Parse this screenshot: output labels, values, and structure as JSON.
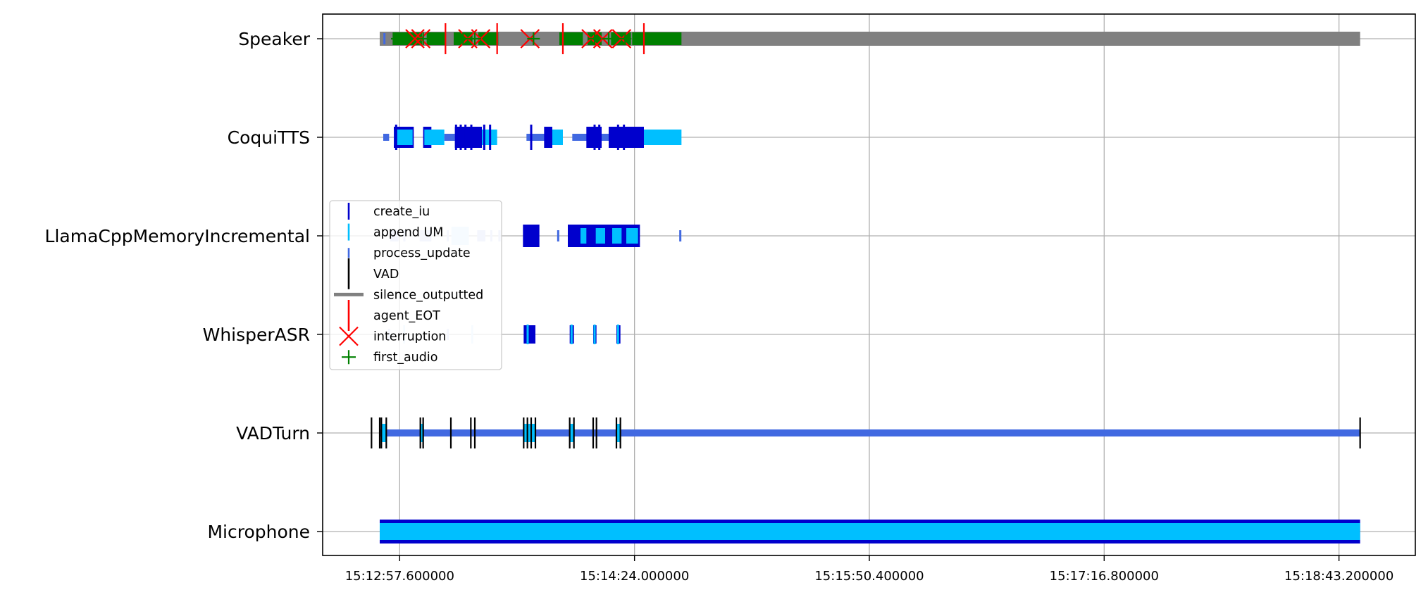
{
  "chart_data": {
    "type": "timeline",
    "title": "",
    "xlabel": "",
    "ylabel": "",
    "grid": true,
    "legend_position": "center-left",
    "x_range_seconds": [
      0,
      442
    ],
    "x_ticks": [
      {
        "t": 33,
        "label": "15:12:57.600000"
      },
      {
        "t": 133,
        "label": "15:14:24.000000"
      },
      {
        "t": 233,
        "label": "15:15:50.400000"
      },
      {
        "t": 333,
        "label": "15:17:16.800000"
      },
      {
        "t": 433,
        "label": "15:18:43.200000"
      }
    ],
    "lanes": [
      "Microphone",
      "VADTurn",
      "WhisperASR",
      "LlamaCppMemoryIncremental",
      "CoquiTTS",
      "Speaker"
    ],
    "colors": {
      "create_iu": "#0000cd",
      "append_UM": "#00bfff",
      "process_update": "#4169e1",
      "VAD": "#000000",
      "silence_outputted": "#808080",
      "agent_EOT": "#ff0000",
      "interruption": "#ff0000",
      "first_audio": "#008000",
      "faded_append": "#cfe8ff",
      "faded_process": "#c8d2f5"
    },
    "legend": [
      {
        "key": "create_iu",
        "label": "create_iu",
        "marker": "vline"
      },
      {
        "key": "append_UM",
        "label": "append UM",
        "marker": "vline"
      },
      {
        "key": "process_update",
        "label": "process_update",
        "marker": "vline-short"
      },
      {
        "key": "VAD",
        "label": "VAD",
        "marker": "vline-tall"
      },
      {
        "key": "silence_outputted",
        "label": "silence_outputted",
        "marker": "hline"
      },
      {
        "key": "agent_EOT",
        "label": "agent_EOT",
        "marker": "vline-tall"
      },
      {
        "key": "interruption",
        "label": "interruption",
        "marker": "x"
      },
      {
        "key": "first_audio",
        "label": "first_audio",
        "marker": "plus"
      }
    ],
    "intervals": [
      {
        "lane": "Microphone",
        "start": 24.5,
        "end": 442,
        "kind": "create_iu"
      },
      {
        "lane": "Microphone",
        "start": 24.5,
        "end": 442,
        "kind": "append_UM"
      },
      {
        "lane": "VADTurn",
        "start": 24.5,
        "end": 442,
        "kind": "process_update"
      },
      {
        "lane": "VADTurn",
        "start": 25.2,
        "end": 27.3,
        "kind": "append_UM"
      },
      {
        "lane": "VADTurn",
        "start": 41.8,
        "end": 43.0,
        "kind": "append_UM"
      },
      {
        "lane": "VADTurn",
        "start": 85.8,
        "end": 90.8,
        "kind": "append_UM"
      },
      {
        "lane": "VADTurn",
        "start": 105.4,
        "end": 107.2,
        "kind": "append_UM"
      },
      {
        "lane": "VADTurn",
        "start": 125.3,
        "end": 127.0,
        "kind": "append_UM"
      },
      {
        "lane": "WhisperASR",
        "start": 34.5,
        "end": 35.3,
        "kind": "faded_append"
      },
      {
        "lane": "WhisperASR",
        "start": 63.5,
        "end": 64.3,
        "kind": "faded_append"
      },
      {
        "lane": "WhisperASR",
        "start": 85.8,
        "end": 90.8,
        "kind": "create_iu"
      },
      {
        "lane": "WhisperASR",
        "start": 105.4,
        "end": 107.2,
        "kind": "create_iu"
      },
      {
        "lane": "WhisperASR",
        "start": 115.4,
        "end": 116.8,
        "kind": "create_iu"
      },
      {
        "lane": "WhisperASR",
        "start": 125.3,
        "end": 127.0,
        "kind": "create_iu"
      },
      {
        "lane": "LlamaCppMemoryIncremental",
        "start": 29.0,
        "end": 32.5,
        "kind": "faded_process"
      },
      {
        "lane": "LlamaCppMemoryIncremental",
        "start": 41.5,
        "end": 46.5,
        "kind": "faded_process"
      },
      {
        "lane": "LlamaCppMemoryIncremental",
        "start": 55.0,
        "end": 62.5,
        "kind": "faded_append"
      },
      {
        "lane": "LlamaCppMemoryIncremental",
        "start": 66.0,
        "end": 69.5,
        "kind": "faded_process"
      },
      {
        "lane": "LlamaCppMemoryIncremental",
        "start": 75.0,
        "end": 76.0,
        "kind": "faded_process"
      },
      {
        "lane": "LlamaCppMemoryIncremental",
        "start": 85.5,
        "end": 92.5,
        "kind": "create_iu"
      },
      {
        "lane": "LlamaCppMemoryIncremental",
        "start": 104.6,
        "end": 135.3,
        "kind": "create_iu"
      },
      {
        "lane": "LlamaCppMemoryIncremental",
        "start": 110.0,
        "end": 112.5,
        "kind": "append_UM"
      },
      {
        "lane": "LlamaCppMemoryIncremental",
        "start": 116.5,
        "end": 120.5,
        "kind": "append_UM"
      },
      {
        "lane": "LlamaCppMemoryIncremental",
        "start": 123.5,
        "end": 127.5,
        "kind": "append_UM"
      },
      {
        "lane": "LlamaCppMemoryIncremental",
        "start": 129.5,
        "end": 134.5,
        "kind": "append_UM"
      },
      {
        "lane": "CoquiTTS",
        "start": 26.0,
        "end": 28.5,
        "kind": "process_update"
      },
      {
        "lane": "CoquiTTS",
        "start": 30.5,
        "end": 39.0,
        "kind": "create_iu"
      },
      {
        "lane": "CoquiTTS",
        "start": 31.0,
        "end": 38.5,
        "kind": "append_UM"
      },
      {
        "lane": "CoquiTTS",
        "start": 43.0,
        "end": 46.5,
        "kind": "create_iu"
      },
      {
        "lane": "CoquiTTS",
        "start": 43.5,
        "end": 52.0,
        "kind": "append_UM"
      },
      {
        "lane": "CoquiTTS",
        "start": 52.0,
        "end": 56.5,
        "kind": "process_update"
      },
      {
        "lane": "CoquiTTS",
        "start": 56.5,
        "end": 68.0,
        "kind": "create_iu"
      },
      {
        "lane": "CoquiTTS",
        "start": 68.0,
        "end": 74.5,
        "kind": "append_UM"
      },
      {
        "lane": "CoquiTTS",
        "start": 87.0,
        "end": 98.0,
        "kind": "process_update"
      },
      {
        "lane": "CoquiTTS",
        "start": 94.5,
        "end": 98.0,
        "kind": "create_iu"
      },
      {
        "lane": "CoquiTTS",
        "start": 98.0,
        "end": 102.5,
        "kind": "append_UM"
      },
      {
        "lane": "CoquiTTS",
        "start": 106.5,
        "end": 137.0,
        "kind": "process_update"
      },
      {
        "lane": "CoquiTTS",
        "start": 112.5,
        "end": 119.0,
        "kind": "create_iu"
      },
      {
        "lane": "CoquiTTS",
        "start": 122.0,
        "end": 137.0,
        "kind": "create_iu"
      },
      {
        "lane": "CoquiTTS",
        "start": 137.0,
        "end": 153.0,
        "kind": "append_UM"
      },
      {
        "lane": "Speaker",
        "start": 24.5,
        "end": 442,
        "kind": "silence_outputted"
      },
      {
        "lane": "Speaker",
        "start": 30.0,
        "end": 42.5,
        "kind": "first_audio"
      },
      {
        "lane": "Speaker",
        "start": 44.5,
        "end": 52.5,
        "kind": "first_audio"
      },
      {
        "lane": "Speaker",
        "start": 56.0,
        "end": 64.0,
        "kind": "first_audio"
      },
      {
        "lane": "Speaker",
        "start": 66.5,
        "end": 75.0,
        "kind": "first_audio"
      },
      {
        "lane": "Speaker",
        "start": 93.0,
        "end": 96.0,
        "kind": "silence_outputted"
      },
      {
        "lane": "Speaker",
        "start": 101.0,
        "end": 111.0,
        "kind": "first_audio"
      },
      {
        "lane": "Speaker",
        "start": 113.0,
        "end": 119.0,
        "kind": "first_audio"
      },
      {
        "lane": "Speaker",
        "start": 123.0,
        "end": 131.5,
        "kind": "first_audio"
      },
      {
        "lane": "Speaker",
        "start": 132.0,
        "end": 153.0,
        "kind": "first_audio"
      }
    ],
    "events": [
      {
        "lane": "VADTurn",
        "t": 21.0,
        "kind": "VAD"
      },
      {
        "lane": "VADTurn",
        "t": 24.5,
        "kind": "VAD"
      },
      {
        "lane": "VADTurn",
        "t": 25.2,
        "kind": "VAD"
      },
      {
        "lane": "VADTurn",
        "t": 27.3,
        "kind": "VAD"
      },
      {
        "lane": "VADTurn",
        "t": 41.8,
        "kind": "VAD"
      },
      {
        "lane": "VADTurn",
        "t": 43.0,
        "kind": "VAD"
      },
      {
        "lane": "VADTurn",
        "t": 54.8,
        "kind": "VAD"
      },
      {
        "lane": "VADTurn",
        "t": 63.3,
        "kind": "VAD"
      },
      {
        "lane": "VADTurn",
        "t": 65.0,
        "kind": "VAD"
      },
      {
        "lane": "VADTurn",
        "t": 85.8,
        "kind": "VAD"
      },
      {
        "lane": "VADTurn",
        "t": 87.4,
        "kind": "VAD"
      },
      {
        "lane": "VADTurn",
        "t": 89.0,
        "kind": "VAD"
      },
      {
        "lane": "VADTurn",
        "t": 90.8,
        "kind": "VAD"
      },
      {
        "lane": "VADTurn",
        "t": 105.4,
        "kind": "VAD"
      },
      {
        "lane": "VADTurn",
        "t": 107.2,
        "kind": "VAD"
      },
      {
        "lane": "VADTurn",
        "t": 115.4,
        "kind": "VAD"
      },
      {
        "lane": "VADTurn",
        "t": 116.8,
        "kind": "VAD"
      },
      {
        "lane": "VADTurn",
        "t": 125.3,
        "kind": "VAD"
      },
      {
        "lane": "VADTurn",
        "t": 127.0,
        "kind": "VAD"
      },
      {
        "lane": "VADTurn",
        "t": 442.0,
        "kind": "VAD"
      },
      {
        "lane": "WhisperASR",
        "t": 28.5,
        "kind": "faded_process"
      },
      {
        "lane": "WhisperASR",
        "t": 53.5,
        "kind": "faded_process"
      },
      {
        "lane": "WhisperASR",
        "t": 87.5,
        "kind": "append_UM"
      },
      {
        "lane": "WhisperASR",
        "t": 106.2,
        "kind": "append_UM"
      },
      {
        "lane": "WhisperASR",
        "t": 116.0,
        "kind": "append_UM"
      },
      {
        "lane": "WhisperASR",
        "t": 126.0,
        "kind": "append_UM"
      },
      {
        "lane": "LlamaCppMemoryIncremental",
        "t": 35.0,
        "kind": "faded_process"
      },
      {
        "lane": "LlamaCppMemoryIncremental",
        "t": 53.5,
        "kind": "faded_process"
      },
      {
        "lane": "LlamaCppMemoryIncremental",
        "t": 72.0,
        "kind": "faded_process"
      },
      {
        "lane": "LlamaCppMemoryIncremental",
        "t": 100.5,
        "kind": "process_update"
      },
      {
        "lane": "LlamaCppMemoryIncremental",
        "t": 152.5,
        "kind": "process_update"
      },
      {
        "lane": "CoquiTTS",
        "t": 31.5,
        "kind": "create_iu"
      },
      {
        "lane": "CoquiTTS",
        "t": 57.0,
        "kind": "create_iu"
      },
      {
        "lane": "CoquiTTS",
        "t": 59.0,
        "kind": "create_iu"
      },
      {
        "lane": "CoquiTTS",
        "t": 61.0,
        "kind": "create_iu"
      },
      {
        "lane": "CoquiTTS",
        "t": 63.5,
        "kind": "create_iu"
      },
      {
        "lane": "CoquiTTS",
        "t": 69.0,
        "kind": "create_iu"
      },
      {
        "lane": "CoquiTTS",
        "t": 71.5,
        "kind": "create_iu"
      },
      {
        "lane": "CoquiTTS",
        "t": 89.0,
        "kind": "create_iu"
      },
      {
        "lane": "CoquiTTS",
        "t": 116.0,
        "kind": "create_iu"
      },
      {
        "lane": "CoquiTTS",
        "t": 118.0,
        "kind": "create_iu"
      },
      {
        "lane": "CoquiTTS",
        "t": 126.0,
        "kind": "create_iu"
      },
      {
        "lane": "CoquiTTS",
        "t": 128.5,
        "kind": "create_iu"
      },
      {
        "lane": "Speaker",
        "t": 26.5,
        "kind": "process_update"
      },
      {
        "lane": "Speaker",
        "t": 52.5,
        "kind": "agent_EOT"
      },
      {
        "lane": "Speaker",
        "t": 74.5,
        "kind": "agent_EOT"
      },
      {
        "lane": "Speaker",
        "t": 102.5,
        "kind": "agent_EOT"
      },
      {
        "lane": "Speaker",
        "t": 137.0,
        "kind": "agent_EOT"
      },
      {
        "lane": "Speaker",
        "t": 39.5,
        "kind": "interruption"
      },
      {
        "lane": "Speaker",
        "t": 42.0,
        "kind": "interruption"
      },
      {
        "lane": "Speaker",
        "t": 62.0,
        "kind": "interruption"
      },
      {
        "lane": "Speaker",
        "t": 67.5,
        "kind": "interruption"
      },
      {
        "lane": "Speaker",
        "t": 88.5,
        "kind": "interruption"
      },
      {
        "lane": "Speaker",
        "t": 114.5,
        "kind": "interruption"
      },
      {
        "lane": "Speaker",
        "t": 119.5,
        "kind": "interruption"
      },
      {
        "lane": "Speaker",
        "t": 127.5,
        "kind": "interruption"
      },
      {
        "lane": "Speaker",
        "t": 32.0,
        "kind": "first_audio"
      },
      {
        "lane": "Speaker",
        "t": 43.0,
        "kind": "first_audio"
      },
      {
        "lane": "Speaker",
        "t": 60.0,
        "kind": "first_audio"
      },
      {
        "lane": "Speaker",
        "t": 65.0,
        "kind": "first_audio"
      },
      {
        "lane": "Speaker",
        "t": 90.0,
        "kind": "first_audio"
      },
      {
        "lane": "Speaker",
        "t": 116.0,
        "kind": "first_audio"
      },
      {
        "lane": "Speaker",
        "t": 122.0,
        "kind": "first_audio"
      },
      {
        "lane": "Speaker",
        "t": 129.0,
        "kind": "first_audio"
      }
    ]
  }
}
